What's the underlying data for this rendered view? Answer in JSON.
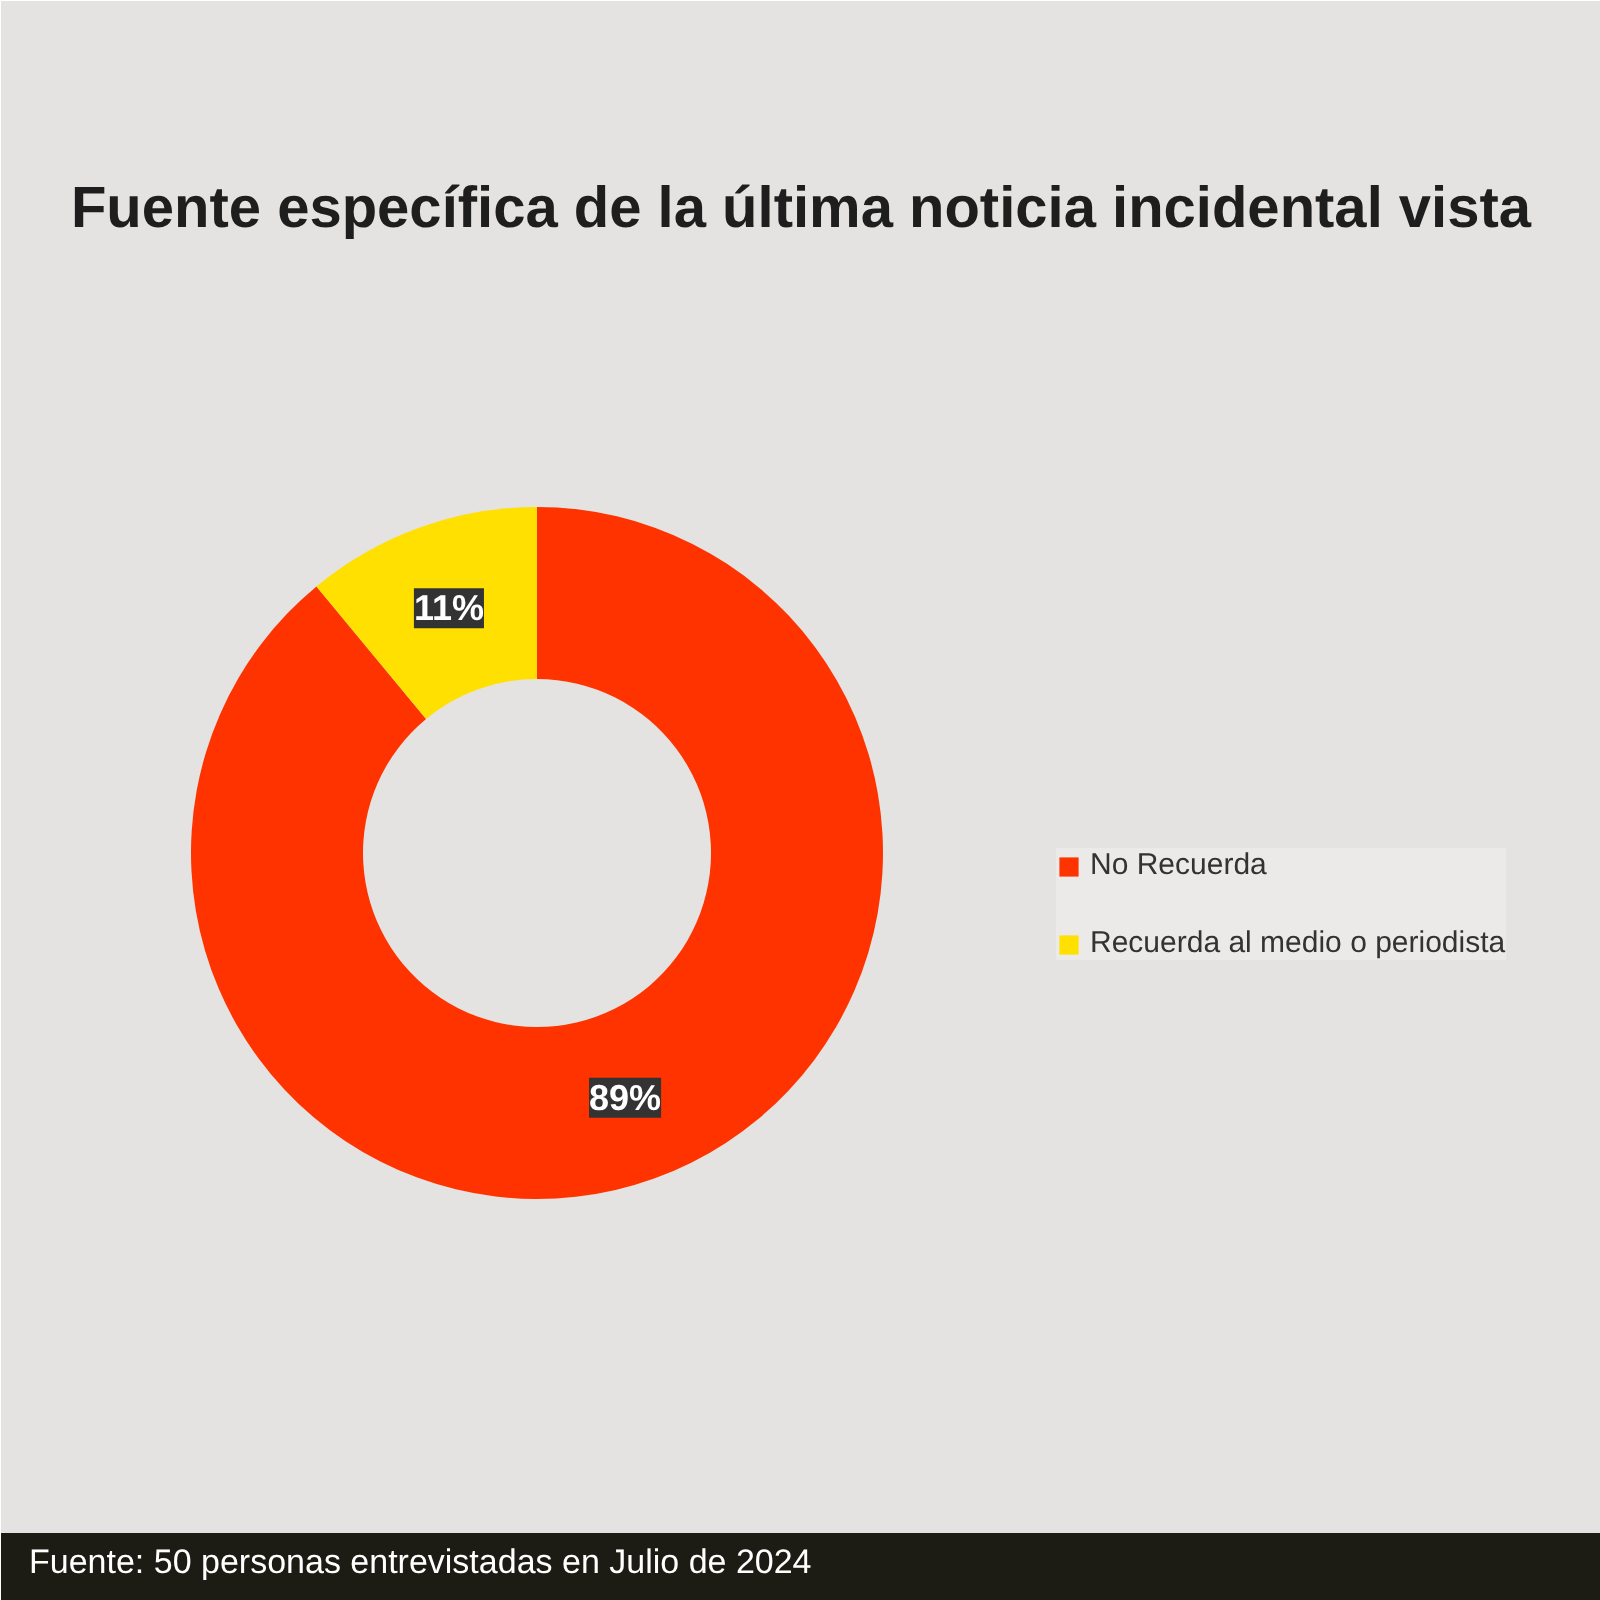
{
  "chart_data": {
    "type": "donut",
    "title": "Fuente específica de la última noticia incidental vista",
    "categories": [
      "No Recuerda",
      "Recuerda al medio o periodista"
    ],
    "values": [
      89,
      11
    ],
    "colors": [
      "#ff3300",
      "#ffe000"
    ],
    "value_labels": [
      "89%",
      "11%"
    ],
    "legend": "right",
    "annotations": [
      "Fuente: 50 personas entrevistadas en Julio de 2024"
    ]
  }
}
